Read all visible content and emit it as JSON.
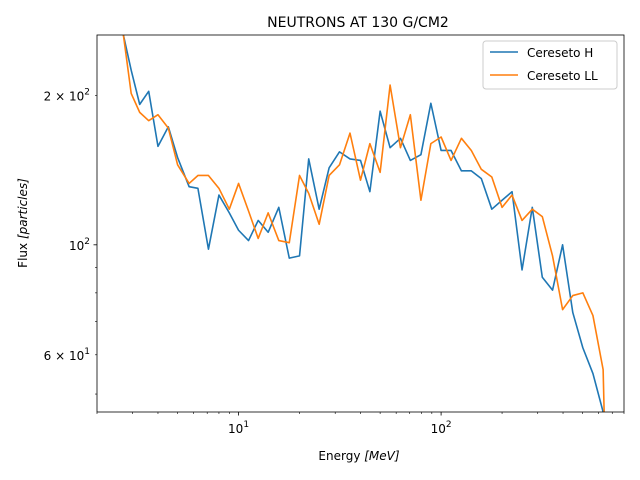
{
  "chart_data": {
    "type": "line",
    "title": "NEUTRONS AT 130 G/CM2",
    "xlabel": {
      "prefix": "Energy ",
      "math": "[MeV]"
    },
    "ylabel": {
      "prefix": "Flux ",
      "math": "[particles]"
    },
    "xscale": "log",
    "yscale": "log",
    "xlim": [
      2.0,
      800
    ],
    "ylim": [
      46,
      265
    ],
    "grid": false,
    "legend_position": "top-right",
    "xticks": [
      {
        "value": 10,
        "base": "10",
        "exp": "1"
      },
      {
        "value": 100,
        "base": "10",
        "exp": "2"
      }
    ],
    "yticks": [
      {
        "value": 60,
        "base": "6 × 10",
        "exp": "1"
      },
      {
        "value": 100,
        "base": "10",
        "exp": "2"
      },
      {
        "value": 200,
        "base": "2 × 10",
        "exp": "2"
      }
    ],
    "series": [
      {
        "name": "Cereseto H",
        "color": "#1f77b4",
        "x": [
          2.7,
          2.95,
          3.25,
          3.6,
          4.0,
          4.5,
          5.0,
          5.7,
          6.3,
          7.1,
          8.0,
          9.0,
          10.0,
          11.2,
          12.5,
          14.0,
          15.8,
          17.8,
          20.0,
          22.2,
          25.0,
          28.0,
          31.5,
          35.5,
          40.0,
          44.5,
          50.0,
          56.0,
          63.0,
          70.5,
          79.5,
          89.0,
          100.0,
          112.0,
          126.0,
          141.0,
          158.0,
          178.0,
          200.0,
          224.0,
          251.0,
          282.0,
          316.0,
          355.0,
          398.0,
          447.0,
          501.0,
          562.0,
          631.0,
          640.0
        ],
        "y": [
          265,
          225,
          192,
          204,
          158,
          173,
          150,
          131,
          130,
          98,
          126,
          116,
          107,
          102,
          112,
          106,
          119,
          94,
          95,
          149,
          118,
          143,
          154,
          149,
          148,
          128,
          186,
          157,
          164,
          148,
          152,
          193,
          155,
          155,
          141,
          141,
          136,
          118,
          123,
          128,
          89,
          119,
          86,
          81,
          100,
          73,
          62,
          55,
          46,
          44
        ]
      },
      {
        "name": "Cereseto LL",
        "color": "#ff7f0e",
        "x": [
          2.7,
          2.95,
          3.25,
          3.6,
          4.0,
          4.5,
          5.0,
          5.7,
          6.3,
          7.1,
          8.0,
          9.0,
          10.0,
          11.2,
          12.5,
          14.0,
          15.8,
          17.8,
          20.0,
          22.2,
          25.0,
          28.0,
          31.5,
          35.5,
          40.0,
          44.5,
          50.0,
          56.0,
          63.0,
          70.5,
          79.5,
          89.0,
          100.0,
          112.0,
          126.0,
          141.0,
          158.0,
          178.0,
          200.0,
          224.0,
          251.0,
          282.0,
          316.0,
          355.0,
          398.0,
          447.0,
          501.0,
          562.0,
          631.0,
          640.0
        ],
        "y": [
          265,
          202,
          185,
          178,
          183,
          172,
          145,
          133,
          138,
          138,
          130,
          118,
          133,
          117,
          103,
          116,
          102,
          101,
          138,
          127,
          110,
          138,
          145,
          168,
          135,
          160,
          140,
          210,
          157,
          183,
          123,
          160,
          165,
          148,
          164,
          155,
          142,
          137,
          119,
          126,
          112,
          118,
          114,
          95,
          74,
          79,
          80,
          72,
          56,
          44
        ]
      }
    ]
  }
}
